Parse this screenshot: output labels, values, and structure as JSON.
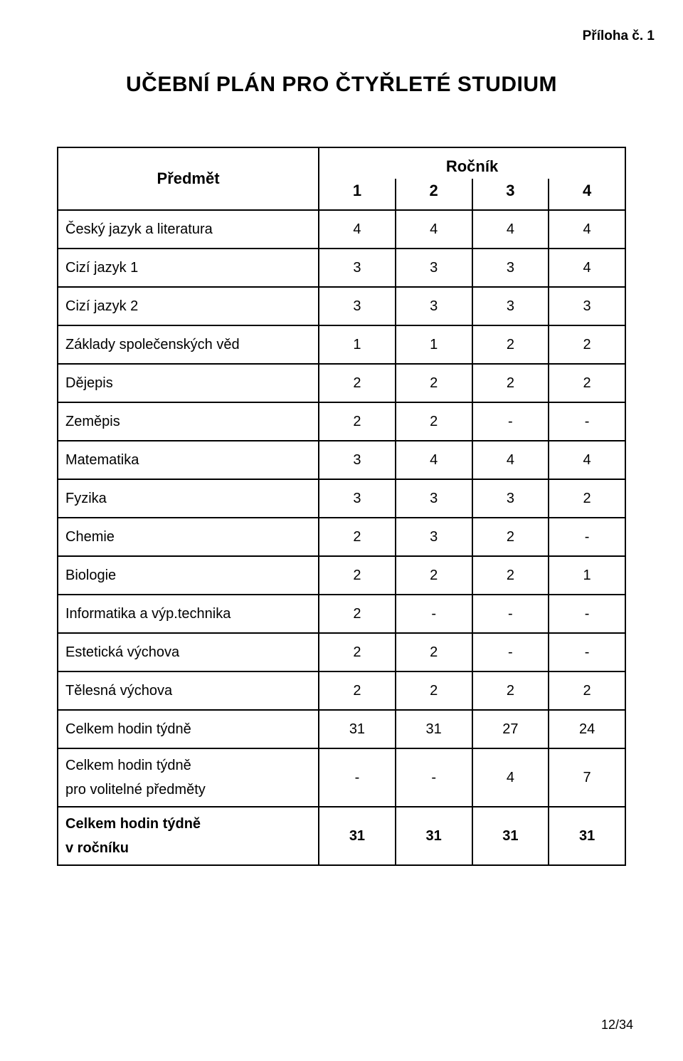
{
  "attachment_label": "Příloha č. 1",
  "main_title": "UČEBNÍ  PLÁN  PRO  ČTYŘLETÉ STUDIUM",
  "table": {
    "type": "table",
    "header": {
      "subject_label": "Předmět",
      "rocnik_label": "Ročník",
      "year_labels": [
        "1",
        "2",
        "3",
        "4"
      ]
    },
    "rows": [
      {
        "subject": "Český jazyk a literatura",
        "v": [
          "4",
          "4",
          "4",
          "4"
        ]
      },
      {
        "subject": "Cizí jazyk 1",
        "v": [
          "3",
          "3",
          "3",
          "4"
        ]
      },
      {
        "subject": "Cizí jazyk 2",
        "v": [
          "3",
          "3",
          "3",
          "3"
        ]
      },
      {
        "subject": "Základy společenských věd",
        "v": [
          "1",
          "1",
          "2",
          "2"
        ]
      },
      {
        "subject": "Dějepis",
        "v": [
          "2",
          "2",
          "2",
          "2"
        ]
      },
      {
        "subject": "Zeměpis",
        "v": [
          "2",
          "2",
          "-",
          "-"
        ]
      },
      {
        "subject": "Matematika",
        "v": [
          "3",
          "4",
          "4",
          "4"
        ]
      },
      {
        "subject": "Fyzika",
        "v": [
          "3",
          "3",
          "3",
          "2"
        ]
      },
      {
        "subject": "Chemie",
        "v": [
          "2",
          "3",
          "2",
          "-"
        ]
      },
      {
        "subject": "Biologie",
        "v": [
          "2",
          "2",
          "2",
          "1"
        ]
      },
      {
        "subject": "Informatika a výp.technika",
        "v": [
          "2",
          "-",
          "-",
          "-"
        ]
      },
      {
        "subject": "Estetická výchova",
        "v": [
          "2",
          "2",
          "-",
          "-"
        ]
      },
      {
        "subject": "Tělesná výchova",
        "v": [
          "2",
          "2",
          "2",
          "2"
        ]
      },
      {
        "subject": "Celkem hodin týdně",
        "v": [
          "31",
          "31",
          "27",
          "24"
        ]
      }
    ],
    "multiline_row_1": {
      "line1": "Celkem hodin týdně",
      "line2": "pro volitelné předměty",
      "v": [
        "-",
        "-",
        "4",
        "7"
      ]
    },
    "multiline_row_2": {
      "line1": "Celkem hodin týdně",
      "line2": "v ročníku",
      "bold_line2": true,
      "bold_values": true,
      "v": [
        "31",
        "31",
        "31",
        "31"
      ]
    },
    "border_color": "#000000",
    "background_color": "#ffffff",
    "text_color": "#000000",
    "cell_fontsize": 20,
    "header_fontsize": 22
  },
  "page_number": "12/34"
}
